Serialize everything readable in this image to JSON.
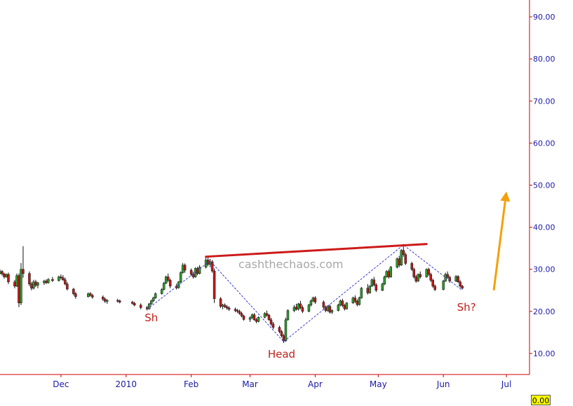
{
  "chart_data": {
    "type": "candlestick",
    "title": "",
    "xlabel": "",
    "ylabel": "",
    "ylim": [
      5,
      94
    ],
    "y_ticks": [
      "10.00",
      "20.00",
      "30.00",
      "40.00",
      "50.00",
      "60.00",
      "70.00",
      "80.00",
      "90.00"
    ],
    "y_tick_values": [
      10,
      20,
      30,
      40,
      50,
      60,
      70,
      80,
      90
    ],
    "x_ticks": [
      "Dec",
      "2010",
      "Feb",
      "Mar",
      "Apr",
      "May",
      "Jun",
      "Jul"
    ],
    "x_tick_dates": [
      "2009-12-01",
      "2010-01-01",
      "2010-02-01",
      "2010-03-01",
      "2010-04-01",
      "2010-05-01",
      "2010-06-01",
      "2010-07-01"
    ],
    "date_range": [
      "2009-11-02",
      "2010-07-12"
    ],
    "grid": false,
    "up_color": "#2e9a2e",
    "down_color": "#c01818",
    "pattern_line_color": "#3a3ad0",
    "neckline_color": "#cc1a1a",
    "arrow_color": "#f5a00a",
    "axis_color": "#cc0000",
    "last_value_label": "0.00",
    "watermark": "cashthechaos.com",
    "candles": [
      [
        "2009-11-02",
        29.0,
        30.0,
        28.8,
        29.5
      ],
      [
        "2009-11-03",
        29.5,
        29.8,
        28.5,
        28.9
      ],
      [
        "2009-11-04",
        28.9,
        29.2,
        27.8,
        28.2
      ],
      [
        "2009-11-05",
        28.2,
        29.0,
        28.0,
        28.8
      ],
      [
        "2009-11-06",
        28.8,
        29.2,
        26.5,
        27.0
      ],
      [
        "2009-11-09",
        27.0,
        27.5,
        25.5,
        26.0
      ],
      [
        "2009-11-10",
        26.0,
        29.0,
        25.8,
        28.5
      ],
      [
        "2009-11-11",
        28.5,
        29.0,
        21.0,
        22.0
      ],
      [
        "2009-11-12",
        22.0,
        31.5,
        21.5,
        30.0
      ],
      [
        "2009-11-13",
        30.0,
        35.5,
        28.0,
        29.0
      ],
      [
        "2009-11-16",
        29.0,
        29.5,
        26.0,
        26.5
      ],
      [
        "2009-11-17",
        26.5,
        27.0,
        25.0,
        25.5
      ],
      [
        "2009-11-18",
        25.5,
        27.5,
        25.2,
        27.0
      ],
      [
        "2009-11-19",
        27.0,
        27.5,
        25.8,
        26.2
      ],
      [
        "2009-11-20",
        26.2,
        27.0,
        25.5,
        26.8
      ],
      [
        "2009-11-23",
        26.8,
        27.5,
        26.3,
        27.2
      ],
      [
        "2009-11-24",
        27.2,
        27.6,
        26.5,
        26.8
      ],
      [
        "2009-11-25",
        26.8,
        27.9,
        26.6,
        27.6
      ],
      [
        "2009-11-27",
        27.6,
        28.2,
        27.0,
        27.3
      ],
      [
        "2009-11-30",
        27.3,
        28.5,
        27.1,
        28.2
      ],
      [
        "2009-12-01",
        28.2,
        28.8,
        27.6,
        28.0
      ],
      [
        "2009-12-02",
        28.0,
        28.6,
        27.2,
        27.5
      ],
      [
        "2009-12-03",
        27.5,
        28.0,
        26.2,
        26.5
      ],
      [
        "2009-12-04",
        26.5,
        27.0,
        25.0,
        25.3
      ],
      [
        "2009-12-07",
        25.3,
        25.6,
        23.8,
        24.2
      ],
      [
        "2009-12-08",
        24.2,
        24.6,
        23.0,
        23.5
      ],
      [
        "2009-12-14",
        23.5,
        24.5,
        23.3,
        24.2
      ],
      [
        "2009-12-15",
        24.2,
        24.6,
        23.5,
        23.8
      ],
      [
        "2009-12-16",
        23.8,
        24.2,
        23.0,
        23.4
      ],
      [
        "2009-12-21",
        23.4,
        23.8,
        22.5,
        22.9
      ],
      [
        "2009-12-22",
        22.9,
        23.3,
        22.0,
        22.4
      ],
      [
        "2009-12-23",
        22.4,
        22.9,
        21.8,
        22.6
      ],
      [
        "2009-12-28",
        22.6,
        23.0,
        22.1,
        22.5
      ],
      [
        "2009-12-29",
        22.5,
        22.8,
        21.9,
        22.2
      ],
      [
        "2010-01-04",
        22.2,
        22.5,
        21.6,
        21.9
      ],
      [
        "2010-01-05",
        21.9,
        22.3,
        21.2,
        21.5
      ],
      [
        "2010-01-08",
        21.5,
        21.9,
        20.5,
        20.9
      ],
      [
        "2010-01-11",
        20.9,
        21.3,
        20.2,
        20.6
      ],
      [
        "2010-01-12",
        20.6,
        22.0,
        20.4,
        21.8
      ],
      [
        "2010-01-13",
        21.8,
        22.8,
        21.5,
        22.5
      ],
      [
        "2010-01-14",
        22.5,
        23.5,
        22.2,
        23.2
      ],
      [
        "2010-01-15",
        23.2,
        24.5,
        23.0,
        24.2
      ],
      [
        "2010-01-18",
        24.2,
        25.5,
        24.0,
        25.2
      ],
      [
        "2010-01-19",
        25.2,
        27.0,
        25.0,
        26.7
      ],
      [
        "2010-01-20",
        26.7,
        28.5,
        26.5,
        28.2
      ],
      [
        "2010-01-21",
        28.2,
        29.0,
        27.0,
        27.4
      ],
      [
        "2010-01-22",
        27.4,
        27.8,
        25.5,
        26.0
      ],
      [
        "2010-01-25",
        26.0,
        26.6,
        25.2,
        25.6
      ],
      [
        "2010-01-26",
        25.6,
        27.2,
        25.4,
        27.0
      ],
      [
        "2010-01-27",
        27.0,
        29.5,
        26.8,
        29.2
      ],
      [
        "2010-01-28",
        29.2,
        31.5,
        29.0,
        31.0
      ],
      [
        "2010-01-29",
        31.0,
        31.4,
        29.2,
        29.8
      ],
      [
        "2010-02-01",
        29.8,
        30.2,
        28.4,
        28.8
      ],
      [
        "2010-02-02",
        28.8,
        29.4,
        27.8,
        28.2
      ],
      [
        "2010-02-03",
        28.2,
        30.5,
        28.0,
        30.2
      ],
      [
        "2010-02-04",
        30.2,
        30.6,
        28.6,
        29.0
      ],
      [
        "2010-02-05",
        29.0,
        31.0,
        28.8,
        30.5
      ],
      [
        "2010-02-08",
        30.5,
        33.0,
        30.2,
        32.2
      ],
      [
        "2010-02-09",
        32.2,
        32.8,
        30.8,
        31.2
      ],
      [
        "2010-02-10",
        31.2,
        32.5,
        30.5,
        31.8
      ],
      [
        "2010-02-11",
        31.8,
        32.2,
        29.2,
        29.6
      ],
      [
        "2010-02-12",
        29.6,
        30.2,
        22.0,
        23.0
      ],
      [
        "2010-02-15",
        23.0,
        23.4,
        20.8,
        21.2
      ],
      [
        "2010-02-16",
        21.2,
        21.8,
        20.5,
        21.5
      ],
      [
        "2010-02-17",
        21.5,
        21.9,
        20.8,
        21.1
      ],
      [
        "2010-02-18",
        21.1,
        21.5,
        20.4,
        20.8
      ],
      [
        "2010-02-19",
        20.8,
        21.2,
        20.1,
        20.5
      ],
      [
        "2010-02-22",
        20.5,
        20.9,
        19.8,
        20.2
      ],
      [
        "2010-02-23",
        20.2,
        20.6,
        19.6,
        20.0
      ],
      [
        "2010-02-24",
        20.0,
        20.4,
        19.2,
        19.5
      ],
      [
        "2010-02-25",
        19.5,
        19.9,
        18.6,
        18.9
      ],
      [
        "2010-02-26",
        18.9,
        19.2,
        17.8,
        18.1
      ],
      [
        "2010-03-01",
        18.1,
        18.8,
        17.5,
        18.5
      ],
      [
        "2010-03-02",
        18.5,
        19.5,
        18.2,
        19.2
      ],
      [
        "2010-03-03",
        19.2,
        19.6,
        17.8,
        18.0
      ],
      [
        "2010-03-04",
        18.0,
        18.4,
        17.2,
        17.6
      ],
      [
        "2010-03-05",
        17.6,
        18.8,
        17.4,
        18.6
      ],
      [
        "2010-03-08",
        18.6,
        19.8,
        18.4,
        19.5
      ],
      [
        "2010-03-09",
        19.5,
        20.2,
        18.8,
        19.1
      ],
      [
        "2010-03-10",
        19.1,
        19.4,
        17.8,
        18.0
      ],
      [
        "2010-03-11",
        18.0,
        18.5,
        16.6,
        17.0
      ],
      [
        "2010-03-12",
        17.0,
        17.5,
        15.8,
        16.2
      ],
      [
        "2010-03-15",
        16.2,
        16.6,
        14.8,
        15.2
      ],
      [
        "2010-03-16",
        15.2,
        15.6,
        13.8,
        14.2
      ],
      [
        "2010-03-17",
        14.2,
        14.6,
        12.5,
        13.0
      ],
      [
        "2010-03-18",
        13.0,
        18.5,
        12.8,
        18.0
      ],
      [
        "2010-03-19",
        18.0,
        20.5,
        17.8,
        20.2
      ],
      [
        "2010-03-22",
        20.2,
        21.5,
        19.8,
        21.0
      ],
      [
        "2010-03-23",
        21.0,
        21.8,
        20.2,
        20.5
      ],
      [
        "2010-03-24",
        20.5,
        22.0,
        20.2,
        21.8
      ],
      [
        "2010-03-25",
        21.8,
        22.5,
        20.5,
        20.9
      ],
      [
        "2010-03-26",
        20.9,
        21.4,
        19.6,
        20.0
      ],
      [
        "2010-03-29",
        20.0,
        21.8,
        19.8,
        21.5
      ],
      [
        "2010-03-30",
        21.5,
        22.8,
        21.2,
        22.5
      ],
      [
        "2010-03-31",
        22.5,
        23.5,
        22.2,
        23.2
      ],
      [
        "2010-04-01",
        23.2,
        23.6,
        21.8,
        22.2
      ],
      [
        "2010-04-05",
        22.2,
        22.6,
        20.5,
        21.0
      ],
      [
        "2010-04-06",
        21.0,
        21.4,
        19.8,
        20.2
      ],
      [
        "2010-04-07",
        20.2,
        21.5,
        19.9,
        21.2
      ],
      [
        "2010-04-08",
        21.2,
        21.6,
        19.5,
        19.8
      ],
      [
        "2010-04-09",
        19.8,
        20.5,
        19.4,
        20.2
      ],
      [
        "2010-04-12",
        20.2,
        21.8,
        20.0,
        21.5
      ],
      [
        "2010-04-13",
        21.5,
        22.8,
        21.2,
        22.5
      ],
      [
        "2010-04-14",
        22.5,
        23.0,
        21.0,
        21.4
      ],
      [
        "2010-04-15",
        21.4,
        21.8,
        20.2,
        20.6
      ],
      [
        "2010-04-16",
        20.6,
        22.2,
        20.4,
        22.0
      ],
      [
        "2010-04-19",
        22.0,
        23.5,
        21.8,
        23.2
      ],
      [
        "2010-04-20",
        23.2,
        23.8,
        22.0,
        22.4
      ],
      [
        "2010-04-21",
        22.4,
        22.8,
        21.2,
        21.6
      ],
      [
        "2010-04-22",
        21.6,
        23.5,
        21.4,
        23.2
      ],
      [
        "2010-04-23",
        23.2,
        25.8,
        23.0,
        25.5
      ],
      [
        "2010-04-26",
        25.5,
        26.5,
        24.0,
        24.4
      ],
      [
        "2010-04-27",
        24.4,
        26.2,
        24.2,
        26.0
      ],
      [
        "2010-04-28",
        26.0,
        27.8,
        25.8,
        27.5
      ],
      [
        "2010-04-29",
        27.5,
        28.2,
        26.0,
        26.3
      ],
      [
        "2010-04-30",
        26.3,
        26.7,
        24.6,
        25.0
      ],
      [
        "2010-05-03",
        25.0,
        26.8,
        24.8,
        26.5
      ],
      [
        "2010-05-04",
        26.5,
        28.5,
        26.2,
        28.2
      ],
      [
        "2010-05-05",
        28.2,
        29.8,
        28.0,
        29.5
      ],
      [
        "2010-05-06",
        29.5,
        30.0,
        27.8,
        28.2
      ],
      [
        "2010-05-07",
        28.2,
        30.8,
        28.0,
        30.5
      ],
      [
        "2010-05-10",
        30.5,
        32.8,
        30.2,
        32.5
      ],
      [
        "2010-05-11",
        32.5,
        33.2,
        30.5,
        31.0
      ],
      [
        "2010-05-12",
        31.0,
        34.8,
        30.8,
        34.5
      ],
      [
        "2010-05-13",
        34.5,
        36.0,
        33.0,
        33.5
      ],
      [
        "2010-05-14",
        33.5,
        34.0,
        31.0,
        31.4
      ],
      [
        "2010-05-17",
        31.4,
        31.8,
        29.6,
        30.0
      ],
      [
        "2010-05-18",
        30.0,
        30.4,
        27.8,
        28.2
      ],
      [
        "2010-05-19",
        28.2,
        28.6,
        26.8,
        27.2
      ],
      [
        "2010-05-20",
        27.2,
        29.0,
        27.0,
        28.8
      ],
      [
        "2010-05-21",
        28.8,
        29.5,
        27.8,
        28.2
      ],
      [
        "2010-05-24",
        28.2,
        30.2,
        28.0,
        30.0
      ],
      [
        "2010-05-25",
        30.0,
        30.4,
        28.4,
        28.8
      ],
      [
        "2010-05-26",
        28.8,
        29.2,
        27.0,
        27.4
      ],
      [
        "2010-05-27",
        27.4,
        27.8,
        25.6,
        26.0
      ],
      [
        "2010-05-28",
        26.0,
        26.4,
        24.8,
        25.2
      ],
      [
        "2010-06-01",
        25.2,
        27.5,
        25.0,
        27.2
      ],
      [
        "2010-06-02",
        27.2,
        29.2,
        27.0,
        28.8
      ],
      [
        "2010-06-03",
        28.8,
        29.5,
        27.8,
        28.1
      ],
      [
        "2010-06-04",
        28.1,
        28.5,
        26.8,
        27.2
      ],
      [
        "2010-06-07",
        27.2,
        28.6,
        27.0,
        28.3
      ],
      [
        "2010-06-08",
        28.3,
        28.6,
        26.8,
        27.0
      ],
      [
        "2010-06-09",
        27.0,
        27.4,
        25.6,
        26.0
      ],
      [
        "2010-06-10",
        26.0,
        26.3,
        25.2,
        25.5
      ]
    ],
    "neckline": [
      [
        "2010-02-08",
        33.0
      ],
      [
        "2010-05-24",
        36.0
      ]
    ],
    "pattern_line": [
      [
        "2010-01-11",
        20.5
      ],
      [
        "2010-02-10",
        32.0
      ],
      [
        "2010-03-17",
        12.8
      ],
      [
        "2010-05-13",
        35.8
      ],
      [
        "2010-06-10",
        25.0
      ]
    ],
    "arrow": [
      [
        "2010-06-25",
        25.0
      ],
      [
        "2010-07-01",
        48.5
      ]
    ],
    "annotations": [
      {
        "text": "Sh",
        "date": "2010-01-13",
        "value": 18.5
      },
      {
        "text": "Head",
        "date": "2010-03-16",
        "value": 9.8
      },
      {
        "text": "Sh?",
        "date": "2010-06-12",
        "value": 21.0
      }
    ]
  }
}
